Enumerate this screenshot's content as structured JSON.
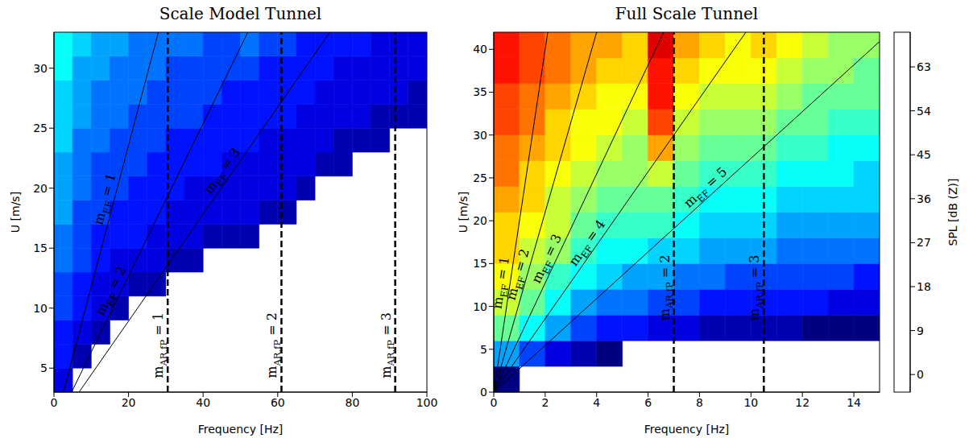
{
  "chart_data": [
    {
      "type": "heatmap",
      "title": "Scale Model Tunnel",
      "x_label": "Frequency [Hz]",
      "y_label": "U [m/s]",
      "xlim": [
        0,
        100
      ],
      "xticks": [
        0,
        20,
        40,
        60,
        80,
        100
      ],
      "ylim": [
        3,
        33
      ],
      "yticks": [
        5,
        10,
        15,
        20,
        25,
        30
      ],
      "cells": {
        "x_edges": [
          0,
          5,
          10,
          15,
          20,
          25,
          30,
          35,
          40,
          45,
          50,
          55,
          60,
          65,
          70,
          75,
          80,
          85,
          90,
          95,
          100
        ],
        "y_edges": [
          3,
          5,
          7,
          9,
          11,
          13,
          15,
          17,
          19,
          21,
          23,
          25,
          27,
          29,
          31,
          33
        ],
        "z": [
          [
            12,
            null,
            null,
            null,
            null,
            null,
            null,
            null,
            null,
            null,
            null,
            null,
            null,
            null,
            null,
            null,
            null,
            null,
            null,
            null
          ],
          [
            15,
            10,
            null,
            null,
            null,
            null,
            null,
            null,
            null,
            null,
            null,
            null,
            null,
            null,
            null,
            null,
            null,
            null,
            null,
            null
          ],
          [
            17,
            13,
            10,
            null,
            null,
            null,
            null,
            null,
            null,
            null,
            null,
            null,
            null,
            null,
            null,
            null,
            null,
            null,
            null,
            null
          ],
          [
            19,
            15,
            12,
            10,
            null,
            null,
            null,
            null,
            null,
            null,
            null,
            null,
            null,
            null,
            null,
            null,
            null,
            null,
            null,
            null
          ],
          [
            20,
            17,
            14,
            12,
            11,
            10,
            null,
            null,
            null,
            null,
            null,
            null,
            null,
            null,
            null,
            null,
            null,
            null,
            null,
            null
          ],
          [
            22,
            18,
            16,
            14,
            13,
            12,
            11,
            10,
            null,
            null,
            null,
            null,
            null,
            null,
            null,
            null,
            null,
            null,
            null,
            null
          ],
          [
            23,
            19,
            17,
            16,
            15,
            14,
            13,
            12,
            11,
            10,
            10,
            null,
            null,
            null,
            null,
            null,
            null,
            null,
            null,
            null
          ],
          [
            24,
            20,
            18,
            17,
            16,
            15,
            14,
            13,
            13,
            12,
            12,
            11,
            10,
            null,
            null,
            null,
            null,
            null,
            null,
            null
          ],
          [
            25,
            21,
            19,
            18,
            17,
            16,
            15,
            14,
            14,
            13,
            13,
            12,
            12,
            11,
            null,
            null,
            null,
            null,
            null,
            null
          ],
          [
            26,
            22,
            20,
            19,
            18,
            17,
            16,
            15,
            15,
            14,
            14,
            13,
            13,
            12,
            11,
            10,
            null,
            null,
            null,
            null
          ],
          [
            27,
            23,
            21,
            20,
            19,
            18,
            17,
            16,
            16,
            15,
            15,
            14,
            14,
            13,
            12,
            11,
            10,
            10,
            null,
            null
          ],
          [
            28,
            24,
            22,
            21,
            20,
            19,
            18,
            18,
            17,
            16,
            16,
            15,
            15,
            14,
            13,
            12,
            12,
            11,
            10,
            10
          ],
          [
            29,
            25,
            23,
            22,
            21,
            20,
            19,
            19,
            18,
            17,
            17,
            16,
            16,
            15,
            14,
            13,
            13,
            12,
            12,
            11
          ],
          [
            30,
            26,
            24,
            23,
            22,
            21,
            20,
            20,
            19,
            18,
            20,
            17,
            17,
            16,
            15,
            14,
            14,
            13,
            13,
            12
          ],
          [
            31,
            27,
            25,
            24,
            23,
            22,
            21,
            21,
            20,
            19,
            21,
            18,
            18,
            17,
            16,
            15,
            15,
            14,
            14,
            13
          ]
        ]
      },
      "lines": [
        {
          "text": [
            "m",
            "EF",
            " = 1"
          ],
          "x": [
            0,
            28
          ],
          "y": [
            0,
            33
          ],
          "color": "#000000",
          "line_style": "solid"
        },
        {
          "text": [
            "m",
            "EF",
            " = 2"
          ],
          "x": [
            0,
            52
          ],
          "y": [
            0,
            33
          ],
          "color": "#000000",
          "line_style": "solid"
        },
        {
          "text": [
            "m",
            "EF",
            " = 3"
          ],
          "x": [
            0,
            74
          ],
          "y": [
            0,
            33
          ],
          "color": "#000000",
          "line_style": "solid"
        }
      ],
      "vlines": [
        {
          "text": [
            "m",
            "AR,fP",
            " = 1"
          ],
          "x": 30.5,
          "color": "#000000",
          "line_style": "dashed"
        },
        {
          "text": [
            "m",
            "AR,fP",
            " = 2"
          ],
          "x": 61,
          "color": "#000000",
          "line_style": "dashed"
        },
        {
          "text": [
            "m",
            "AR,fP",
            " = 3"
          ],
          "x": 91.5,
          "color": "#000000",
          "line_style": "dashed"
        }
      ]
    },
    {
      "type": "heatmap",
      "title": "Full Scale Tunnel",
      "x_label": "Frequency [Hz]",
      "y_label": "U [m/s]",
      "xlim": [
        0,
        15
      ],
      "xticks": [
        0,
        2,
        4,
        6,
        8,
        10,
        12,
        14
      ],
      "ylim": [
        0,
        42
      ],
      "yticks": [
        0,
        5,
        10,
        15,
        20,
        25,
        30,
        35,
        40
      ],
      "cells": {
        "x_edges": [
          0,
          1,
          2,
          3,
          4,
          5,
          6,
          7,
          8,
          9,
          10,
          11,
          12,
          13,
          14,
          15
        ],
        "y_edges": [
          0,
          3,
          6,
          9,
          12,
          15,
          18,
          21,
          24,
          27,
          30,
          33,
          36,
          39,
          42
        ],
        "z": [
          [
            8,
            3,
            3,
            3,
            3,
            3,
            3,
            3,
            3,
            3,
            3,
            3,
            3,
            3,
            3
          ],
          [
            24,
            18,
            12,
            9,
            7,
            5,
            4,
            3,
            3,
            3,
            3,
            3,
            3,
            3,
            3
          ],
          [
            36,
            30,
            24,
            20,
            17,
            15,
            13,
            12,
            11,
            10,
            10,
            9,
            8,
            8,
            8
          ],
          [
            42,
            36,
            30,
            26,
            23,
            21,
            19,
            18,
            17,
            16,
            16,
            15,
            15,
            14,
            14
          ],
          [
            45,
            40,
            35,
            31,
            28,
            26,
            24,
            23,
            21,
            20,
            20,
            19,
            18,
            18,
            17
          ],
          [
            48,
            43,
            39,
            35,
            32,
            30,
            29,
            27,
            25,
            24,
            24,
            23,
            22,
            21,
            21
          ],
          [
            50,
            46,
            42,
            38,
            35,
            33,
            33,
            30,
            28,
            27,
            27,
            26,
            25,
            24,
            24
          ],
          [
            52,
            48,
            44,
            41,
            38,
            36,
            38,
            33,
            31,
            30,
            30,
            29,
            28,
            27,
            27
          ],
          [
            54,
            50,
            46,
            43,
            41,
            39,
            44,
            36,
            34,
            33,
            33,
            32,
            31,
            30,
            29
          ],
          [
            56,
            52,
            48,
            45,
            43,
            41,
            52,
            39,
            37,
            36,
            37,
            35,
            33,
            32,
            31
          ],
          [
            58,
            54,
            50,
            47,
            45,
            43,
            57,
            42,
            40,
            39,
            40,
            37,
            36,
            34,
            33
          ],
          [
            59,
            55,
            52,
            49,
            47,
            46,
            60,
            45,
            43,
            42,
            43,
            40,
            38,
            37,
            36
          ],
          [
            60,
            57,
            54,
            51,
            49,
            48,
            62,
            48,
            46,
            45,
            46,
            43,
            41,
            39,
            38
          ],
          [
            62,
            58,
            55,
            53,
            51,
            50,
            64,
            51,
            49,
            47,
            48,
            47,
            43,
            41,
            40
          ]
        ]
      },
      "lines": [
        {
          "text": [
            "m",
            "EF",
            " = 1"
          ],
          "x": [
            0,
            2.1
          ],
          "y": [
            0,
            42
          ],
          "color": "#000000",
          "line_style": "solid"
        },
        {
          "text": [
            "m",
            "EF",
            " = 2"
          ],
          "x": [
            0,
            4.0
          ],
          "y": [
            0,
            42
          ],
          "color": "#000000",
          "line_style": "solid"
        },
        {
          "text": [
            "m",
            "EF",
            " = 3"
          ],
          "x": [
            0,
            6.6
          ],
          "y": [
            0,
            42
          ],
          "color": "#000000",
          "line_style": "solid"
        },
        {
          "text": [
            "m",
            "EF",
            " = 4"
          ],
          "x": [
            0,
            9.8
          ],
          "y": [
            0,
            42
          ],
          "color": "#000000",
          "line_style": "solid"
        },
        {
          "text": [
            "m",
            "EF",
            " = 5"
          ],
          "x": [
            0,
            15.4
          ],
          "y": [
            0,
            42
          ],
          "color": "#000000",
          "line_style": "solid"
        }
      ],
      "vlines": [
        {
          "text": [
            "m",
            "AR,fP",
            " = 2"
          ],
          "x": 7,
          "color": "#000000",
          "line_style": "dashed"
        },
        {
          "text": [
            "m",
            "AR,fP",
            " = 3"
          ],
          "x": 10.5,
          "color": "#000000",
          "line_style": "dashed"
        }
      ]
    },
    {
      "type": "colorbar",
      "label": "SPL [dB (Z)]",
      "ylim": [
        -3.6,
        70.1
      ],
      "yticks": [
        0,
        9,
        18,
        27,
        36,
        45,
        54,
        63
      ],
      "levels": [
        6,
        9,
        12,
        15,
        18,
        21,
        24,
        27,
        30,
        33,
        36,
        39,
        42,
        45,
        48,
        51,
        54,
        57,
        60,
        63,
        66,
        69
      ]
    }
  ]
}
